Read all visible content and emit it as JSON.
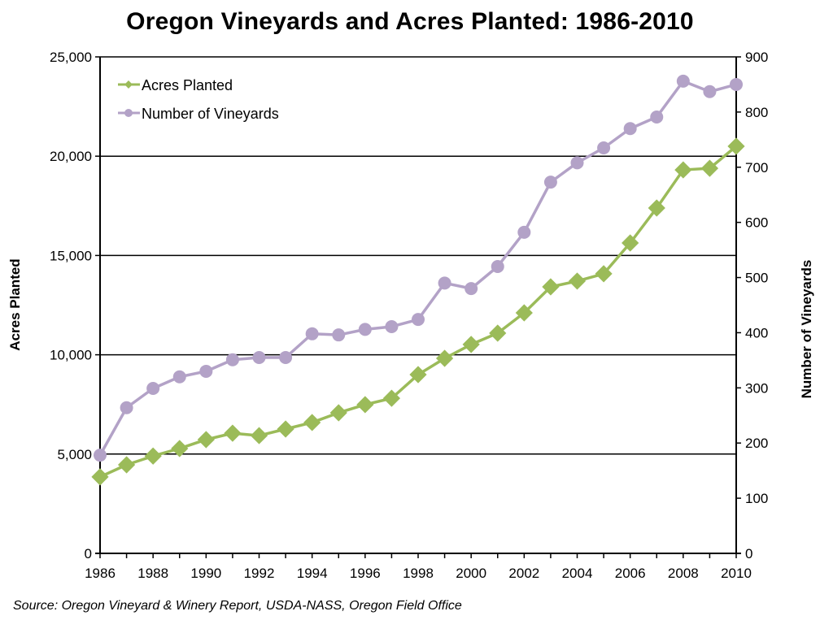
{
  "title": "Oregon Vineyards and Acres Planted: 1986-2010",
  "source": "Source: Oregon Vineyard & Winery Report, USDA-NASS, Oregon Field Office",
  "colors": {
    "acres": "#9BBB59",
    "vineyards": "#B3A2C7",
    "gridline": "#000000",
    "background": "#FFFFFF"
  },
  "chart_data": {
    "type": "line",
    "title": "Oregon Vineyards and Acres Planted: 1986-2010",
    "xlabel": "",
    "ylabel": "Acres Planted",
    "y2label": "Number of Vineyards",
    "x": [
      1986,
      1987,
      1988,
      1989,
      1990,
      1991,
      1992,
      1993,
      1994,
      1995,
      1996,
      1997,
      1998,
      1999,
      2000,
      2001,
      2002,
      2003,
      2004,
      2005,
      2006,
      2007,
      2008,
      2009,
      2010
    ],
    "x_tick_labels": [
      "1986",
      "1988",
      "1990",
      "1992",
      "1994",
      "1996",
      "1998",
      "2000",
      "2002",
      "2004",
      "2006",
      "2008",
      "2010"
    ],
    "ylim": [
      0,
      25000
    ],
    "y_ticks": [
      "0",
      "5,000",
      "10,000",
      "15,000",
      "20,000",
      "25,000"
    ],
    "y2lim": [
      0,
      900
    ],
    "y2_ticks": [
      "0",
      "100",
      "200",
      "300",
      "400",
      "500",
      "600",
      "700",
      "800",
      "900"
    ],
    "grid": "horizontal at left-axis major ticks",
    "legend_position": "upper-left inside plot",
    "series": [
      {
        "name": "Acres Planted",
        "axis": "left",
        "marker": "diamond",
        "color": "#9BBB59",
        "values": [
          3850,
          4460,
          4900,
          5280,
          5730,
          6050,
          5930,
          6260,
          6590,
          7080,
          7490,
          7810,
          9000,
          9820,
          10520,
          11090,
          12110,
          13420,
          13710,
          14080,
          15630,
          17390,
          19310,
          19390,
          20500
        ]
      },
      {
        "name": "Number of Vineyards",
        "axis": "right",
        "marker": "circle",
        "color": "#B3A2C7",
        "values": [
          178,
          264,
          299,
          320,
          330,
          351,
          355,
          355,
          398,
          396,
          406,
          411,
          424,
          490,
          480,
          520,
          582,
          673,
          708,
          735,
          770,
          791,
          856,
          837,
          850
        ]
      }
    ]
  }
}
